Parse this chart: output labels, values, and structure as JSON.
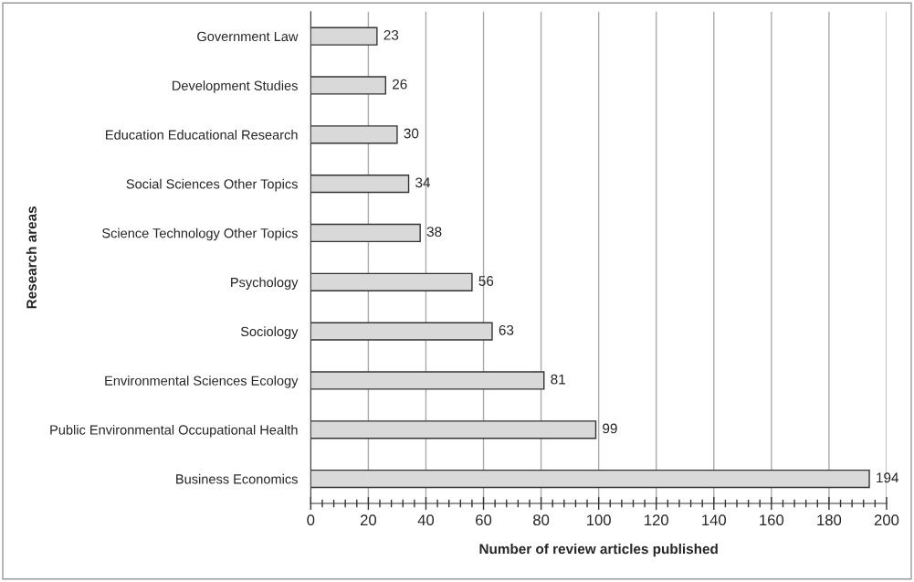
{
  "chart_data": {
    "type": "bar",
    "orientation": "horizontal",
    "xlabel": "Number of review articles published",
    "ylabel": "Research areas",
    "categories": [
      "Government Law",
      "Development Studies",
      "Education Educational Research",
      "Social Sciences Other Topics",
      "Science Technology Other Topics",
      "Psychology",
      "Sociology",
      "Environmental Sciences Ecology",
      "Public Environmental Occupational Health",
      "Business Economics"
    ],
    "values": [
      23,
      26,
      30,
      34,
      38,
      56,
      63,
      81,
      99,
      194
    ],
    "color": "#d9d9d9",
    "xlim": [
      0,
      200
    ],
    "xticks": [
      0,
      20,
      40,
      60,
      80,
      100,
      120,
      140,
      160,
      180,
      200
    ],
    "grid": "x",
    "data_labels": true,
    "legend": false
  }
}
